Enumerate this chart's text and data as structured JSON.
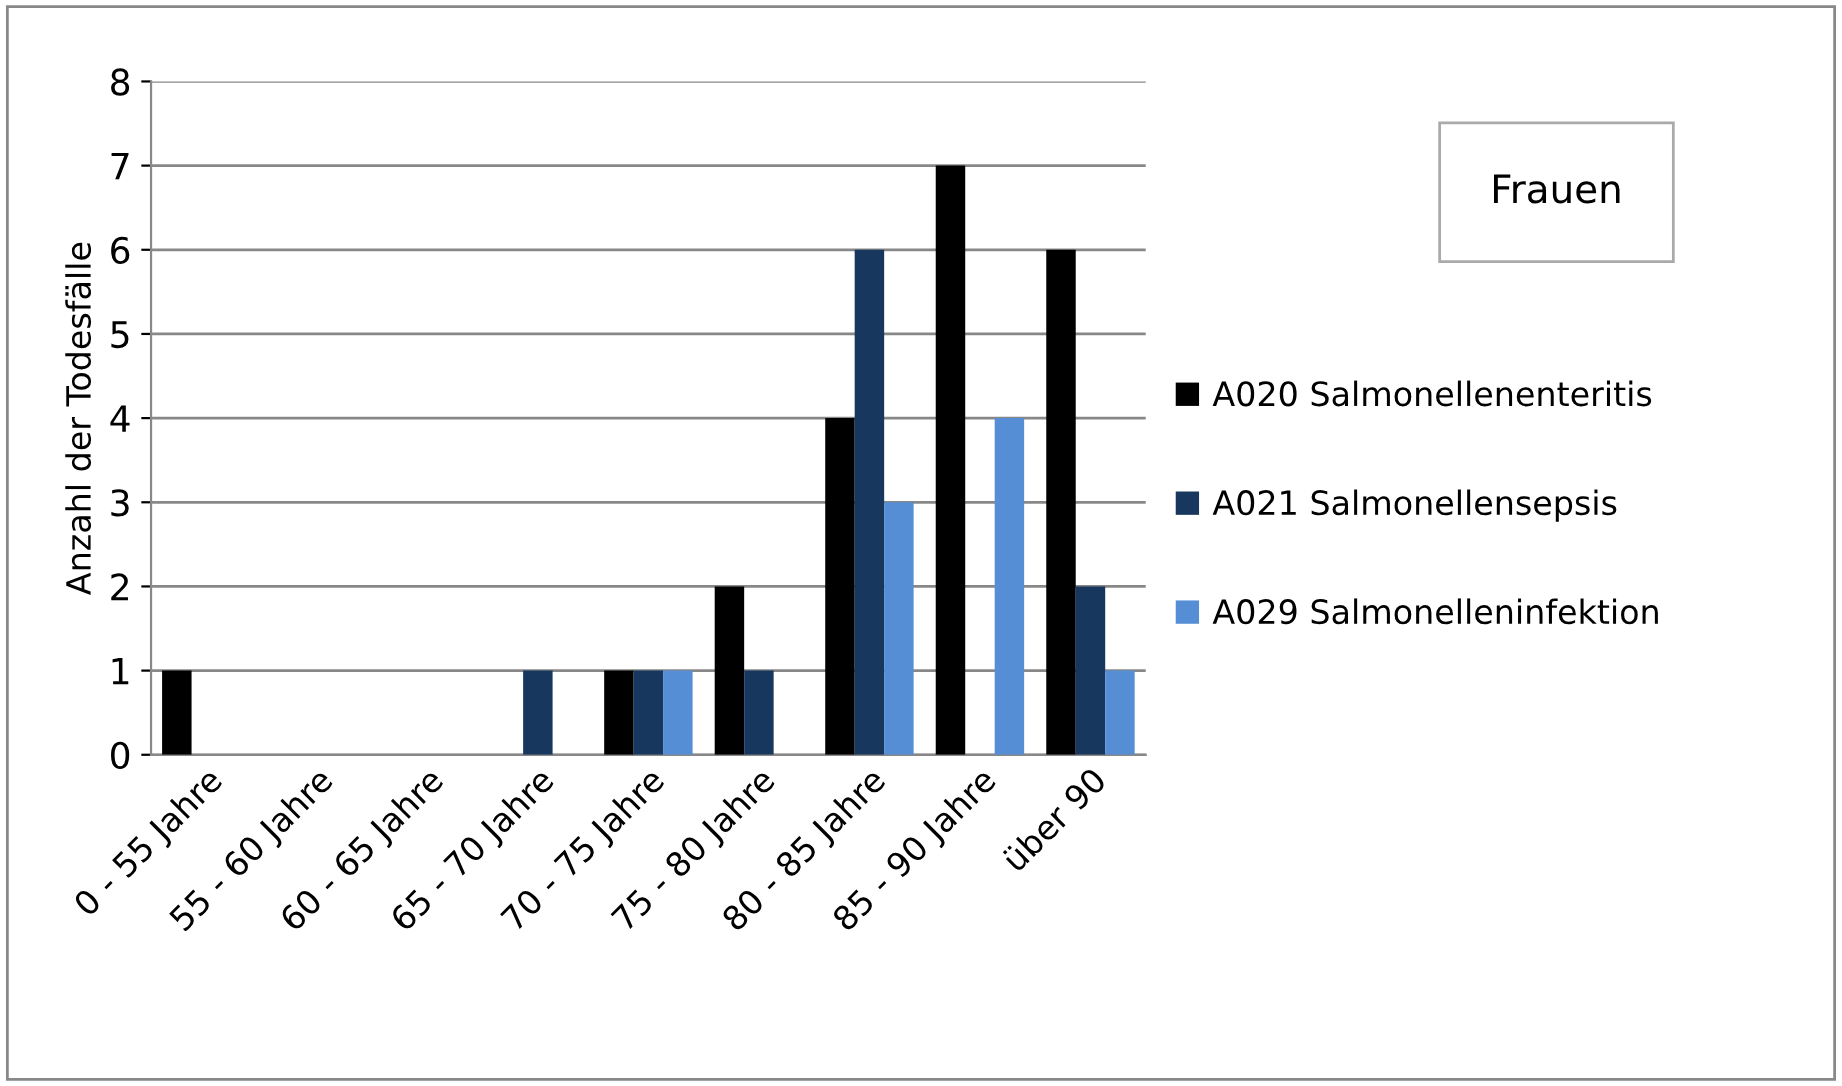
{
  "chart_data": {
    "type": "bar",
    "ylabel": "Anzahl der Todesfälle",
    "annotations": [
      "Frauen"
    ],
    "categories": [
      "0 - 55 Jahre",
      "55 - 60 Jahre",
      "60 - 65 Jahre",
      "65 - 70 Jahre",
      "70 - 75 Jahre",
      "75 - 80 Jahre",
      "80 - 85 Jahre",
      "85 - 90 Jahre",
      "über 90"
    ],
    "series": [
      {
        "name": "A020 Salmonellenenteritis",
        "color": "#000000",
        "values": [
          1,
          0,
          0,
          0,
          1,
          2,
          4,
          7,
          6
        ]
      },
      {
        "name": "A021 Salmonellensepsis",
        "color": "#17375e",
        "values": [
          0,
          0,
          0,
          1,
          1,
          1,
          6,
          0,
          2
        ]
      },
      {
        "name": "A029 Salmonelleninfektion",
        "color": "#558ed5",
        "values": [
          0,
          0,
          0,
          0,
          1,
          0,
          3,
          4,
          1
        ]
      }
    ],
    "ylim": [
      0,
      8
    ],
    "yticks": [
      0,
      1,
      2,
      3,
      4,
      5,
      6,
      7,
      8
    ],
    "grid": "y",
    "legend": "right"
  }
}
